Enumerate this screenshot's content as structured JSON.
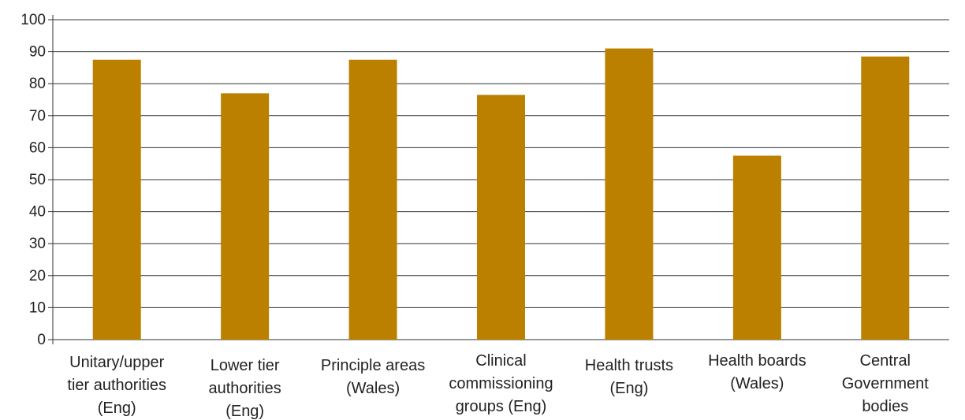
{
  "chart_data": {
    "type": "bar",
    "title": "",
    "xlabel": "",
    "ylabel": "",
    "ylim": [
      0,
      100
    ],
    "yticks": [
      0,
      10,
      20,
      30,
      40,
      50,
      60,
      70,
      80,
      90,
      100
    ],
    "grid": true,
    "bar_color": "#BB8000",
    "categories": [
      [
        "Unitary/upper",
        "tier authorities",
        "(Eng)"
      ],
      [
        "Lower tier",
        "authorities",
        "(Eng)"
      ],
      [
        "Principle areas",
        "(Wales)"
      ],
      [
        "Clinical",
        "commissioning",
        "groups (Eng)"
      ],
      [
        "Health trusts",
        "(Eng)"
      ],
      [
        "Health boards",
        "(Wales)"
      ],
      [
        "Central",
        "Government",
        "bodies"
      ]
    ],
    "values": [
      87.5,
      77,
      87.5,
      76.5,
      91,
      57.5,
      88.5
    ]
  }
}
